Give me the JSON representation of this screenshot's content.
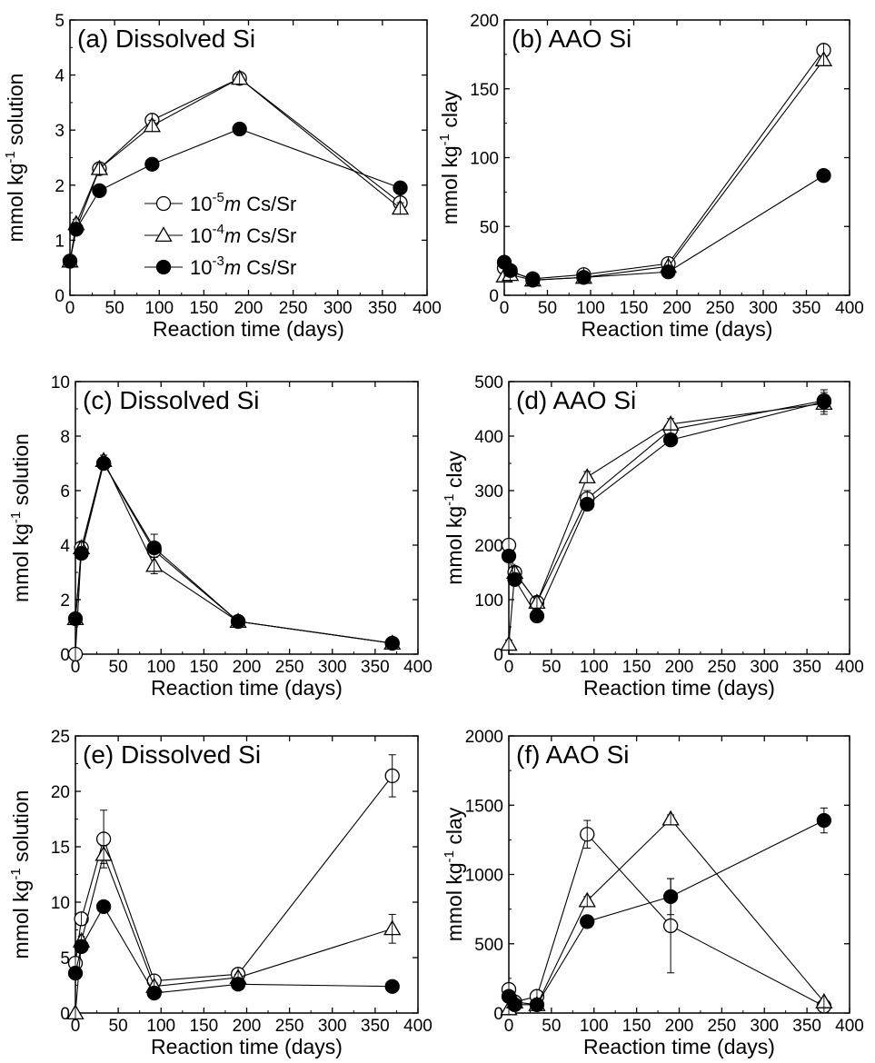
{
  "chart_data": [
    {
      "type": "line",
      "title": "(a) Dissolved Si",
      "xlabel": "Reaction time (days)",
      "ylabel": "mmol kg-1 solution",
      "xlim": [
        0,
        400
      ],
      "ylim": [
        0,
        5
      ],
      "xticks": [
        0,
        50,
        100,
        150,
        200,
        250,
        300,
        350,
        400
      ],
      "yticks": [
        0,
        1,
        2,
        3,
        4,
        5
      ],
      "x": [
        0,
        7,
        33,
        92,
        190,
        370
      ],
      "series": [
        {
          "name": "10-5 m Cs/Sr",
          "marker": "open-circle",
          "values": [
            0.62,
            1.2,
            2.3,
            3.18,
            3.94,
            1.68
          ],
          "errors": [
            0.05,
            0.08,
            0.08,
            0.08,
            0.08,
            0.1
          ]
        },
        {
          "name": "10-4 m Cs/Sr",
          "marker": "open-triangle",
          "values": [
            0.62,
            1.3,
            2.3,
            3.08,
            3.94,
            1.58
          ],
          "errors": [
            0.05,
            0.08,
            0.08,
            0.1,
            0.08,
            0.1
          ]
        },
        {
          "name": "10-3 m Cs/Sr",
          "marker": "filled-circle",
          "values": [
            0.62,
            1.2,
            1.9,
            2.38,
            3.02,
            1.95
          ],
          "errors": [
            0,
            0,
            0,
            0,
            0,
            0
          ]
        }
      ],
      "legend": {
        "position": "bottom-left",
        "entries": [
          {
            "base": "10",
            "exp": "-5",
            "m": "m",
            "rest": " Cs/Sr",
            "marker": "open-circle"
          },
          {
            "base": "10",
            "exp": "-4",
            "m": "m",
            "rest": " Cs/Sr",
            "marker": "open-triangle"
          },
          {
            "base": "10",
            "exp": "-3",
            "m": "m",
            "rest": " Cs/Sr",
            "marker": "filled-circle"
          }
        ]
      }
    },
    {
      "type": "line",
      "title": "(b) AAO Si",
      "xlabel": "Reaction time (days)",
      "ylabel": "mmol kg-1 clay",
      "xlim": [
        0,
        400
      ],
      "ylim": [
        0,
        200
      ],
      "xticks": [
        0,
        50,
        100,
        150,
        200,
        250,
        300,
        350,
        400
      ],
      "yticks": [
        0,
        50,
        100,
        150,
        200
      ],
      "x": [
        0,
        7,
        33,
        92,
        190,
        370
      ],
      "series": [
        {
          "name": "10-5 m Cs/Sr",
          "marker": "open-circle",
          "values": [
            20,
            17,
            12,
            15,
            23,
            178
          ],
          "errors": [
            2,
            2,
            2,
            2,
            2,
            2
          ]
        },
        {
          "name": "10-4 m Cs/Sr",
          "marker": "open-triangle",
          "values": [
            14,
            15,
            11,
            13,
            21,
            171
          ],
          "errors": [
            2,
            2,
            2,
            2,
            2,
            2
          ]
        },
        {
          "name": "10-3 m Cs/Sr",
          "marker": "filled-circle",
          "values": [
            24,
            18,
            11,
            13,
            17,
            87
          ],
          "errors": [
            0,
            0,
            0,
            0,
            0,
            0
          ]
        }
      ]
    },
    {
      "type": "line",
      "title": "(c) Dissolved Si",
      "xlabel": "Reaction time (days)",
      "ylabel": "mmol kg-1 solution",
      "xlim": [
        0,
        400
      ],
      "ylim": [
        0,
        10
      ],
      "xticks": [
        0,
        50,
        100,
        150,
        200,
        250,
        300,
        350,
        400
      ],
      "yticks": [
        0,
        2,
        4,
        6,
        8,
        10
      ],
      "x": [
        0,
        7,
        33,
        92,
        190,
        370
      ],
      "series": [
        {
          "name": "10-5 m Cs/Sr",
          "marker": "open-circle",
          "values": [
            0,
            3.9,
            7.0,
            3.8,
            1.2,
            0.4
          ],
          "errors": [
            0.1,
            0.2,
            0.2,
            0.6,
            0.15,
            0.15
          ]
        },
        {
          "name": "10-4 m Cs/Sr",
          "marker": "open-triangle",
          "values": [
            1.3,
            3.9,
            7.1,
            3.25,
            1.2,
            0.4
          ],
          "errors": [
            0.1,
            0.2,
            0.2,
            0.3,
            0.15,
            0.15
          ]
        },
        {
          "name": "10-3 m Cs/Sr",
          "marker": "filled-circle",
          "values": [
            1.3,
            3.7,
            7.0,
            3.9,
            1.2,
            0.4
          ],
          "errors": [
            0,
            0,
            0,
            0,
            0,
            0
          ]
        }
      ]
    },
    {
      "type": "line",
      "title": "(d) AAO Si",
      "xlabel": "Reaction time (days)",
      "ylabel": "mmol kg-1 clay",
      "xlim": [
        0,
        400
      ],
      "ylim": [
        0,
        500
      ],
      "xticks": [
        0,
        50,
        100,
        150,
        200,
        250,
        300,
        350,
        400
      ],
      "yticks": [
        0,
        100,
        200,
        300,
        400,
        500
      ],
      "x": [
        0,
        7,
        33,
        92,
        190,
        370
      ],
      "series": [
        {
          "name": "10-5 m Cs/Sr",
          "marker": "open-circle",
          "values": [
            200,
            150,
            95,
            285,
            412,
            465
          ],
          "errors": [
            10,
            10,
            10,
            15,
            10,
            20
          ]
        },
        {
          "name": "10-4 m Cs/Sr",
          "marker": "open-triangle",
          "values": [
            18,
            150,
            95,
            325,
            422,
            460
          ],
          "errors": [
            8,
            10,
            10,
            10,
            10,
            20
          ]
        },
        {
          "name": "10-3 m Cs/Sr",
          "marker": "filled-circle",
          "values": [
            180,
            137,
            70,
            275,
            393,
            463
          ],
          "errors": [
            0,
            0,
            0,
            0,
            0,
            0
          ]
        }
      ]
    },
    {
      "type": "line",
      "title": "(e) Dissolved Si",
      "xlabel": "Reaction time (days)",
      "ylabel": "mmol kg-1 solution",
      "xlim": [
        0,
        400
      ],
      "ylim": [
        0,
        25
      ],
      "xticks": [
        0,
        50,
        100,
        150,
        200,
        250,
        300,
        350,
        400
      ],
      "yticks": [
        0,
        5,
        10,
        15,
        20,
        25
      ],
      "x": [
        0,
        7,
        33,
        92,
        190,
        370
      ],
      "series": [
        {
          "name": "10-5 m Cs/Sr",
          "marker": "open-circle",
          "values": [
            4.5,
            8.5,
            15.7,
            2.9,
            3.5,
            21.4
          ],
          "errors": [
            0.5,
            0.5,
            2.6,
            0.4,
            0.4,
            1.9
          ]
        },
        {
          "name": "10-4 m Cs/Sr",
          "marker": "open-triangle",
          "values": [
            0,
            6.5,
            14.3,
            2.4,
            3.2,
            7.6
          ],
          "errors": [
            0.2,
            0.4,
            0.8,
            0.3,
            0.3,
            1.3
          ]
        },
        {
          "name": "10-3 m Cs/Sr",
          "marker": "filled-circle",
          "values": [
            3.6,
            6.0,
            9.6,
            1.8,
            2.6,
            2.4
          ],
          "errors": [
            0,
            0,
            0,
            0,
            0,
            0
          ]
        }
      ]
    },
    {
      "type": "line",
      "title": "(f) AAO Si",
      "xlabel": "Reaction time (days)",
      "ylabel": "mmol kg-1 clay",
      "xlim": [
        0,
        400
      ],
      "ylim": [
        0,
        2000
      ],
      "xticks": [
        0,
        50,
        100,
        150,
        200,
        250,
        300,
        350,
        400
      ],
      "yticks": [
        0,
        500,
        1000,
        1500,
        2000
      ],
      "x": [
        0,
        7,
        33,
        92,
        190,
        370
      ],
      "series": [
        {
          "name": "10-5 m Cs/Sr",
          "marker": "open-circle",
          "values": [
            170,
            80,
            120,
            1290,
            630,
            50
          ],
          "errors": [
            30,
            30,
            30,
            100,
            340,
            30
          ]
        },
        {
          "name": "10-4 m Cs/Sr",
          "marker": "open-triangle",
          "values": [
            30,
            80,
            60,
            810,
            1400,
            80
          ],
          "errors": [
            20,
            20,
            20,
            30,
            30,
            20
          ]
        },
        {
          "name": "10-3 m Cs/Sr",
          "marker": "filled-circle",
          "values": [
            120,
            60,
            60,
            660,
            840,
            1390
          ],
          "errors": [
            0,
            0,
            0,
            0,
            130,
            90
          ]
        }
      ]
    }
  ]
}
